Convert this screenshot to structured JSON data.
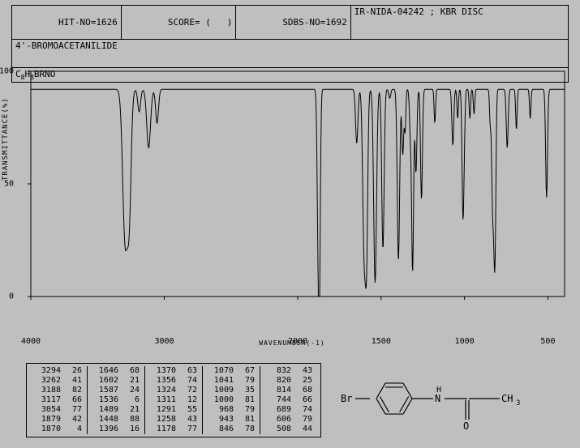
{
  "header": {
    "hit_no_label": "HIT-NO=",
    "hit_no": "1626",
    "score_label": "SCORE=",
    "score": "(   )",
    "sdbs_label": "SDBS-NO=",
    "sdbs_no": "1692",
    "spec_info": "IR-NIDA-04242 ; KBR DISC",
    "compound_name": "4'-BROMOACETANILIDE",
    "formula_plain": "C8H8BRNO",
    "formula_parts": [
      "C",
      "8",
      "H",
      "8",
      "BRNO"
    ]
  },
  "chart": {
    "type": "line",
    "title": "",
    "ylabel": "TRANSMITTANCE(%)",
    "xlabel": "WAVENUMBER(-1)",
    "xlim": [
      4000,
      400
    ],
    "ylim": [
      0,
      100
    ],
    "xticks": [
      4000,
      3000,
      2000,
      1500,
      1000,
      500
    ],
    "yticks": [
      0,
      50,
      100
    ],
    "background_color": "#bfbfbf",
    "line_color": "#000000",
    "line_width": 1,
    "spectrum_baseline": 92,
    "spectrum_noise": 1.2,
    "peaks": [
      {
        "wn": 3294,
        "tr": 26,
        "w": 25
      },
      {
        "wn": 3262,
        "tr": 41,
        "w": 20
      },
      {
        "wn": 3188,
        "tr": 82,
        "w": 15
      },
      {
        "wn": 3117,
        "tr": 66,
        "w": 20
      },
      {
        "wn": 3054,
        "tr": 77,
        "w": 15
      },
      {
        "wn": 1879,
        "tr": 42,
        "w": 8
      },
      {
        "wn": 1870,
        "tr": 4,
        "w": 8
      },
      {
        "wn": 1646,
        "tr": 68,
        "w": 10
      },
      {
        "wn": 1602,
        "tr": 21,
        "w": 12
      },
      {
        "wn": 1587,
        "tr": 24,
        "w": 10
      },
      {
        "wn": 1536,
        "tr": 6,
        "w": 12
      },
      {
        "wn": 1489,
        "tr": 21,
        "w": 10
      },
      {
        "wn": 1448,
        "tr": 88,
        "w": 8
      },
      {
        "wn": 1396,
        "tr": 16,
        "w": 10
      },
      {
        "wn": 1370,
        "tr": 63,
        "w": 8
      },
      {
        "wn": 1356,
        "tr": 74,
        "w": 6
      },
      {
        "wn": 1324,
        "tr": 72,
        "w": 8
      },
      {
        "wn": 1311,
        "tr": 12,
        "w": 8
      },
      {
        "wn": 1291,
        "tr": 55,
        "w": 8
      },
      {
        "wn": 1258,
        "tr": 43,
        "w": 8
      },
      {
        "wn": 1178,
        "tr": 77,
        "w": 6
      },
      {
        "wn": 1070,
        "tr": 67,
        "w": 8
      },
      {
        "wn": 1041,
        "tr": 79,
        "w": 6
      },
      {
        "wn": 1009,
        "tr": 35,
        "w": 8
      },
      {
        "wn": 1000,
        "tr": 81,
        "w": 6
      },
      {
        "wn": 968,
        "tr": 79,
        "w": 6
      },
      {
        "wn": 943,
        "tr": 81,
        "w": 6
      },
      {
        "wn": 846,
        "tr": 78,
        "w": 6
      },
      {
        "wn": 832,
        "tr": 43,
        "w": 8
      },
      {
        "wn": 820,
        "tr": 25,
        "w": 8
      },
      {
        "wn": 814,
        "tr": 68,
        "w": 6
      },
      {
        "wn": 744,
        "tr": 66,
        "w": 8
      },
      {
        "wn": 689,
        "tr": 74,
        "w": 6
      },
      {
        "wn": 606,
        "tr": 79,
        "w": 6
      },
      {
        "wn": 508,
        "tr": 44,
        "w": 8
      }
    ]
  },
  "peak_table": {
    "columns": [
      [
        [
          "3294",
          "26"
        ],
        [
          "3262",
          "41"
        ],
        [
          "3188",
          "82"
        ],
        [
          "3117",
          "66"
        ],
        [
          "3054",
          "77"
        ],
        [
          "1879",
          "42"
        ],
        [
          "1870",
          "4"
        ]
      ],
      [
        [
          "1646",
          "68"
        ],
        [
          "1602",
          "21"
        ],
        [
          "1587",
          "24"
        ],
        [
          "1536",
          "6"
        ],
        [
          "1489",
          "21"
        ],
        [
          "1448",
          "88"
        ],
        [
          "1396",
          "16"
        ]
      ],
      [
        [
          "1370",
          "63"
        ],
        [
          "1356",
          "74"
        ],
        [
          "1324",
          "72"
        ],
        [
          "1311",
          "12"
        ],
        [
          "1291",
          "55"
        ],
        [
          "1258",
          "43"
        ],
        [
          "1178",
          "77"
        ]
      ],
      [
        [
          "1070",
          "67"
        ],
        [
          "1041",
          "79"
        ],
        [
          "1009",
          "35"
        ],
        [
          "1000",
          "81"
        ],
        [
          "968",
          "79"
        ],
        [
          "943",
          "81"
        ],
        [
          "846",
          "78"
        ]
      ],
      [
        [
          "832",
          "43"
        ],
        [
          "820",
          "25"
        ],
        [
          "814",
          "68"
        ],
        [
          "744",
          "66"
        ],
        [
          "689",
          "74"
        ],
        [
          "606",
          "79"
        ],
        [
          "508",
          "44"
        ]
      ]
    ]
  },
  "molecule": {
    "atoms": {
      "Br": "Br",
      "N": "N",
      "H": "H",
      "CH3": "CH",
      "CH3_sub": "3",
      "O": "O"
    },
    "line_color": "#000000"
  }
}
